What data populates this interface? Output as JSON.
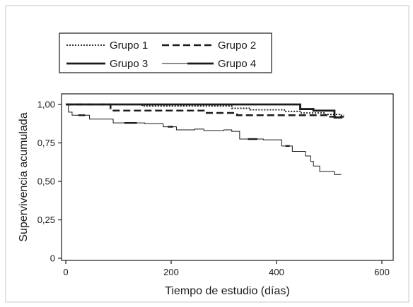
{
  "chart_data": {
    "type": "line",
    "title": "",
    "xlabel": "Tiempo de estudio (días)",
    "ylabel": "Supervivencia acumulada",
    "xlim": [
      0,
      600
    ],
    "ylim": [
      0,
      1.0
    ],
    "x_ticks": [
      0,
      200,
      400,
      600
    ],
    "y_ticks": [
      0,
      0.25,
      0.5,
      0.75,
      1.0
    ],
    "x_tick_labels": [
      "0",
      "200",
      "400",
      "600"
    ],
    "y_tick_labels": [
      "0",
      "0,25",
      "0,50",
      "0,75",
      "1,00"
    ],
    "grid": false,
    "legend_position": "top-left, outside plot",
    "line_color": "#1a1a1a",
    "series": [
      {
        "name": "Grupo 1",
        "style": "dotted",
        "points": [
          [
            0,
            1.0
          ],
          [
            145,
            1.0
          ],
          [
            145,
            0.99
          ],
          [
            315,
            0.99
          ],
          [
            315,
            0.975
          ],
          [
            350,
            0.975
          ],
          [
            350,
            0.965
          ],
          [
            415,
            0.965
          ],
          [
            415,
            0.955
          ],
          [
            445,
            0.955
          ],
          [
            445,
            0.945
          ],
          [
            490,
            0.945
          ],
          [
            490,
            0.935
          ],
          [
            520,
            0.935
          ],
          [
            520,
            0.93
          ],
          [
            528,
            0.93
          ]
        ]
      },
      {
        "name": "Grupo 2",
        "style": "dashed",
        "points": [
          [
            0,
            1.0
          ],
          [
            85,
            1.0
          ],
          [
            85,
            0.96
          ],
          [
            265,
            0.96
          ],
          [
            265,
            0.945
          ],
          [
            325,
            0.945
          ],
          [
            325,
            0.93
          ],
          [
            500,
            0.93
          ],
          [
            500,
            0.92
          ],
          [
            528,
            0.92
          ]
        ]
      },
      {
        "name": "Grupo 3",
        "style": "solid-thick",
        "points": [
          [
            0,
            1.0
          ],
          [
            445,
            1.0
          ],
          [
            445,
            0.97
          ],
          [
            470,
            0.97
          ],
          [
            470,
            0.96
          ],
          [
            510,
            0.96
          ],
          [
            510,
            0.915
          ],
          [
            525,
            0.915
          ]
        ]
      },
      {
        "name": "Grupo 4",
        "style": "solid-thin",
        "points": [
          [
            0,
            1.0
          ],
          [
            5,
            1.0
          ],
          [
            5,
            0.95
          ],
          [
            12,
            0.95
          ],
          [
            12,
            0.93
          ],
          [
            45,
            0.93
          ],
          [
            45,
            0.905
          ],
          [
            90,
            0.905
          ],
          [
            90,
            0.88
          ],
          [
            150,
            0.88
          ],
          [
            150,
            0.875
          ],
          [
            185,
            0.875
          ],
          [
            185,
            0.855
          ],
          [
            210,
            0.855
          ],
          [
            210,
            0.835
          ],
          [
            245,
            0.835
          ],
          [
            245,
            0.84
          ],
          [
            262,
            0.84
          ],
          [
            262,
            0.83
          ],
          [
            300,
            0.83
          ],
          [
            300,
            0.835
          ],
          [
            315,
            0.835
          ],
          [
            315,
            0.825
          ],
          [
            330,
            0.825
          ],
          [
            330,
            0.775
          ],
          [
            375,
            0.775
          ],
          [
            375,
            0.77
          ],
          [
            410,
            0.77
          ],
          [
            410,
            0.73
          ],
          [
            430,
            0.73
          ],
          [
            430,
            0.695
          ],
          [
            455,
            0.695
          ],
          [
            455,
            0.665
          ],
          [
            465,
            0.665
          ],
          [
            465,
            0.63
          ],
          [
            470,
            0.63
          ],
          [
            470,
            0.6
          ],
          [
            482,
            0.6
          ],
          [
            482,
            0.565
          ],
          [
            510,
            0.565
          ],
          [
            510,
            0.545
          ],
          [
            523,
            0.545
          ]
        ]
      }
    ]
  }
}
